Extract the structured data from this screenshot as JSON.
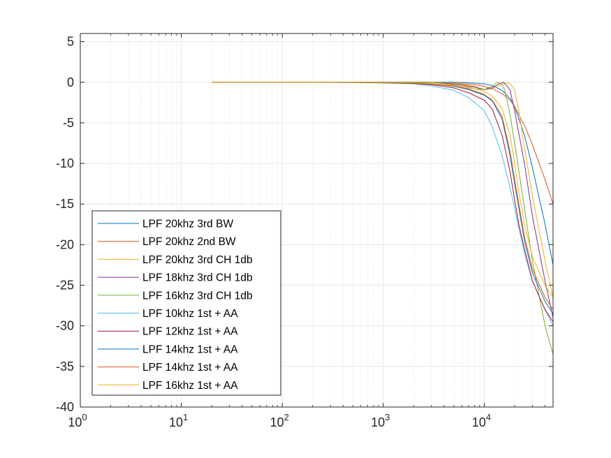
{
  "chart_data": {
    "type": "line",
    "title": "",
    "xlabel": "",
    "ylabel": "",
    "x_scale": "log",
    "xlim": [
      1,
      48000
    ],
    "ylim": [
      -40,
      6
    ],
    "x_ticks": [
      1,
      10,
      100,
      1000,
      10000
    ],
    "x_tick_labels": [
      {
        "base": "10",
        "exp": "0"
      },
      {
        "base": "10",
        "exp": "1"
      },
      {
        "base": "10",
        "exp": "2"
      },
      {
        "base": "10",
        "exp": "3"
      },
      {
        "base": "10",
        "exp": "4"
      }
    ],
    "y_ticks": [
      5,
      0,
      -5,
      -10,
      -15,
      -20,
      -25,
      -30,
      -35,
      -40
    ],
    "y_tick_labels": [
      "5",
      "0",
      "-5",
      "-10",
      "-15",
      "-20",
      "-25",
      "-30",
      "-35",
      "-40"
    ],
    "grid": true,
    "legend_position": "bottom-left",
    "series": [
      {
        "name": "LPF 20khz 3rd BW",
        "color": "#0072BD",
        "x": [
          20,
          100,
          1000,
          3000,
          5000,
          8000,
          10000,
          12000,
          15000,
          18000,
          20000,
          25000,
          30000,
          40000,
          48000
        ],
        "y": [
          0,
          0,
          0,
          0,
          0,
          -0.1,
          -0.2,
          -0.4,
          -1.0,
          -2.0,
          -3.0,
          -6.5,
          -10.5,
          -17.5,
          -22.5
        ]
      },
      {
        "name": "LPF 20khz 2nd BW",
        "color": "#D95319",
        "x": [
          20,
          100,
          1000,
          3000,
          5000,
          8000,
          10000,
          12000,
          15000,
          18000,
          20000,
          25000,
          30000,
          40000,
          48000
        ],
        "y": [
          0,
          0,
          0,
          0,
          -0.1,
          -0.3,
          -0.5,
          -0.8,
          -1.4,
          -2.2,
          -3.0,
          -5.3,
          -7.7,
          -12.0,
          -15.0
        ]
      },
      {
        "name": "LPF 20khz 3rd CH 1db",
        "color": "#EDB120",
        "x": [
          20,
          100,
          1000,
          3000,
          5000,
          8000,
          10000,
          12000,
          15000,
          17000,
          18500,
          20000,
          22000,
          25000,
          30000,
          40000,
          48000
        ],
        "y": [
          0,
          0,
          0,
          0,
          -0.1,
          -0.5,
          -0.9,
          -0.8,
          -0.3,
          0,
          -0.3,
          -1.0,
          -3.5,
          -8.0,
          -14.0,
          -22.0,
          -26.5
        ]
      },
      {
        "name": "LPF 18khz 3rd CH 1db",
        "color": "#7E2F8E",
        "x": [
          20,
          100,
          1000,
          3000,
          5000,
          8000,
          10000,
          12000,
          14000,
          15500,
          17000,
          18000,
          20000,
          25000,
          30000,
          40000,
          48000
        ],
        "y": [
          0,
          0,
          0,
          0,
          -0.2,
          -0.6,
          -0.9,
          -0.7,
          -0.2,
          0,
          -0.5,
          -1.0,
          -3.5,
          -10.0,
          -16.5,
          -24.5,
          -29.0
        ]
      },
      {
        "name": "LPF 16khz 3rd CH 1db",
        "color": "#77AC30",
        "x": [
          20,
          100,
          1000,
          3000,
          5000,
          8000,
          10000,
          12000,
          13500,
          15000,
          16000,
          18000,
          20000,
          25000,
          30000,
          40000,
          48000
        ],
        "y": [
          0,
          0,
          0,
          0,
          -0.3,
          -0.8,
          -0.9,
          -0.5,
          0,
          -0.3,
          -1.0,
          -4.0,
          -7.5,
          -15.5,
          -22.0,
          -30.0,
          -33.5
        ]
      },
      {
        "name": "LPF 10khz 1st + AA",
        "color": "#4DBEEE",
        "x": [
          20,
          100,
          500,
          1000,
          2000,
          3000,
          5000,
          7000,
          10000,
          12000,
          15000,
          18000,
          20000,
          22000,
          25000,
          30000,
          40000,
          48000
        ],
        "y": [
          0,
          0,
          -0.05,
          -0.1,
          -0.2,
          -0.45,
          -1.0,
          -1.9,
          -3.5,
          -5.5,
          -9.0,
          -13.0,
          -15.5,
          -18.0,
          -21.0,
          -24.5,
          -28.0,
          -30.0
        ]
      },
      {
        "name": "LPF 12khz 1st + AA",
        "color": "#A2142F",
        "x": [
          20,
          100,
          500,
          1000,
          2000,
          3000,
          5000,
          7000,
          10000,
          12000,
          15000,
          18000,
          20000,
          22000,
          25000,
          30000,
          40000,
          48000
        ],
        "y": [
          0,
          0,
          -0.03,
          -0.07,
          -0.15,
          -0.3,
          -0.7,
          -1.3,
          -2.2,
          -3.3,
          -6.5,
          -11.0,
          -14.5,
          -17.5,
          -20.5,
          -24.5,
          -28.0,
          -29.5
        ]
      },
      {
        "name": "LPF 14khz 1st + AA",
        "color": "#0072BD",
        "x": [
          20,
          100,
          500,
          1000,
          2000,
          3000,
          5000,
          7000,
          10000,
          12000,
          15000,
          18000,
          20000,
          22000,
          25000,
          30000,
          40000,
          48000
        ],
        "y": [
          0,
          0,
          -0.02,
          -0.05,
          -0.1,
          -0.2,
          -0.5,
          -0.9,
          -1.6,
          -2.3,
          -4.5,
          -9.0,
          -12.5,
          -15.5,
          -19.5,
          -23.5,
          -27.0,
          -28.5
        ]
      },
      {
        "name": "LPF 14khz 1st + AA",
        "color": "#D95319",
        "x": [
          20,
          100,
          500,
          1000,
          2000,
          3000,
          5000,
          7000,
          10000,
          12000,
          15000,
          18000,
          20000,
          22000,
          25000,
          30000,
          40000,
          48000
        ],
        "y": [
          0,
          0,
          -0.02,
          -0.05,
          -0.1,
          -0.2,
          -0.45,
          -0.8,
          -1.5,
          -2.2,
          -4.2,
          -8.5,
          -12.0,
          -15.0,
          -19.0,
          -23.0,
          -26.5,
          -28.0
        ]
      },
      {
        "name": "LPF 16khz 1st + AA",
        "color": "#EDB120",
        "x": [
          20,
          100,
          500,
          1000,
          2000,
          3000,
          5000,
          7000,
          10000,
          12000,
          15000,
          18000,
          20000,
          22000,
          25000,
          30000,
          40000,
          48000
        ],
        "y": [
          0,
          0,
          -0.01,
          -0.03,
          -0.07,
          -0.15,
          -0.35,
          -0.6,
          -1.1,
          -1.7,
          -3.2,
          -6.5,
          -10.0,
          -13.5,
          -17.5,
          -21.5,
          -25.0,
          -26.5
        ]
      }
    ]
  }
}
